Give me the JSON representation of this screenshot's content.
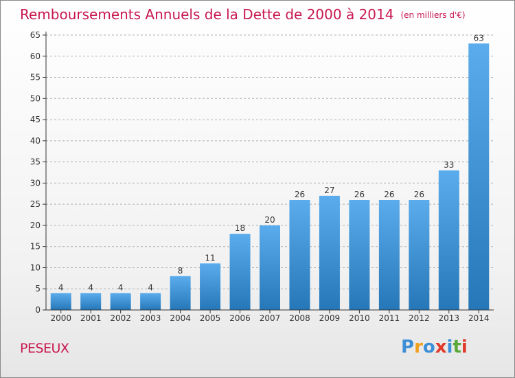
{
  "header": {
    "title": "Remboursements Annuels de la Dette de 2000 à 2014",
    "unit": "(en milliers d'€)"
  },
  "footer": {
    "commune": "PESEUX"
  },
  "logo": {
    "letters": [
      "P",
      "r",
      "o",
      "x",
      "i",
      "t",
      "i"
    ],
    "colors": [
      "#3c8fd6",
      "#f0a020",
      "#3c8fd6",
      "#e03a2a",
      "#3c8fd6",
      "#5aa83a",
      "#e03a2a"
    ]
  },
  "chart_data": {
    "type": "bar",
    "categories": [
      "2000",
      "2001",
      "2002",
      "2003",
      "2004",
      "2005",
      "2006",
      "2007",
      "2008",
      "2009",
      "2010",
      "2011",
      "2012",
      "2013",
      "2014"
    ],
    "values": [
      4,
      4,
      4,
      4,
      8,
      11,
      18,
      20,
      26,
      27,
      26,
      26,
      26,
      33,
      63
    ],
    "ylim": [
      0,
      65
    ],
    "yticks": [
      0,
      5,
      10,
      15,
      20,
      25,
      30,
      35,
      40,
      45,
      50,
      55,
      60,
      65
    ],
    "bar_color_top": "#5aacec",
    "bar_color_bottom": "#2577b8",
    "grid": true,
    "data_labels": true
  }
}
